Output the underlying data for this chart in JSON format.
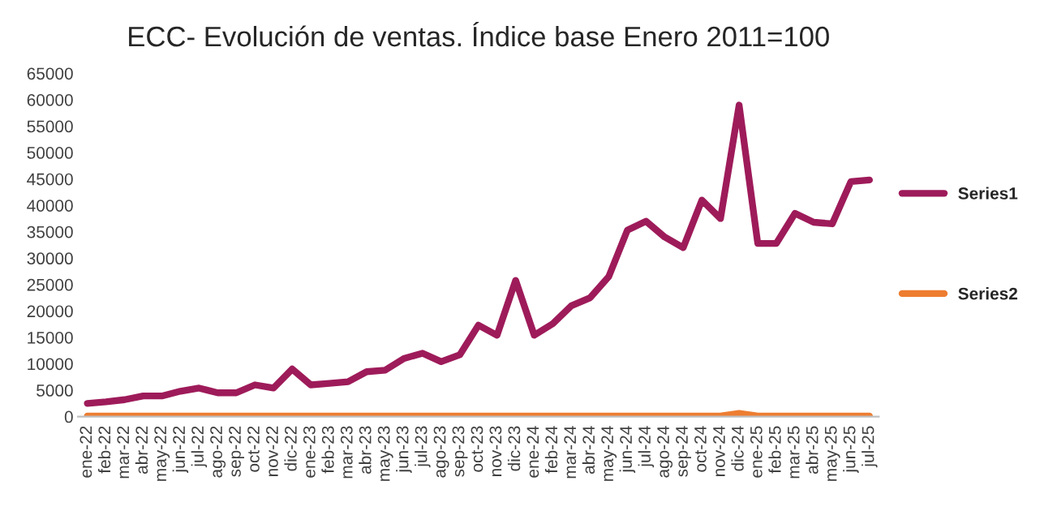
{
  "chart_data": {
    "type": "line",
    "title": "ECC- Evolución de ventas. Índice base Enero 2011=100",
    "categories": [
      "ene-22",
      "feb-22",
      "mar-22",
      "abr-22",
      "may-22",
      "jun-22",
      "jul-22",
      "ago-22",
      "sep-22",
      "oct-22",
      "nov-22",
      "dic-22",
      "ene-23",
      "feb-23",
      "mar-23",
      "abr-23",
      "may-23",
      "jun-23",
      "jul-23",
      "ago-23",
      "sep-23",
      "oct-23",
      "nov-23",
      "dic-23",
      "ene-24",
      "feb-24",
      "mar-24",
      "abr-24",
      "may-24",
      "jun-24",
      "jul-24",
      "ago-24",
      "sep-24",
      "oct-24",
      "nov-24",
      "dic-24",
      "ene-25",
      "feb-25",
      "mar-25",
      "abr-25",
      "may-25",
      "jun-25",
      "jul-25"
    ],
    "series": [
      {
        "name": "Series1",
        "color": "#9e1b5a",
        "values": [
          2500,
          2800,
          3200,
          3900,
          3900,
          4800,
          5400,
          4500,
          4500,
          6000,
          5400,
          9000,
          6000,
          6300,
          6600,
          8500,
          8800,
          11000,
          12000,
          10400,
          11700,
          17300,
          15400,
          25800,
          15400,
          17600,
          21000,
          22500,
          26500,
          35300,
          37000,
          34000,
          32000,
          41000,
          37500,
          59000,
          32800,
          32800,
          38500,
          36800,
          36500,
          44500,
          44800
        ]
      },
      {
        "name": "Series2",
        "color": "#ed7d31",
        "values": [
          100,
          100,
          100,
          100,
          100,
          100,
          100,
          100,
          100,
          100,
          100,
          100,
          100,
          100,
          100,
          100,
          100,
          100,
          100,
          100,
          100,
          100,
          100,
          100,
          100,
          100,
          100,
          100,
          100,
          100,
          100,
          100,
          100,
          100,
          100,
          600,
          100,
          100,
          100,
          100,
          100,
          100,
          100
        ]
      }
    ],
    "ylim": [
      0,
      65000
    ],
    "yticks": [
      0,
      5000,
      10000,
      15000,
      20000,
      25000,
      30000,
      35000,
      40000,
      45000,
      50000,
      55000,
      60000,
      65000
    ],
    "legend": "right",
    "grid": false
  }
}
